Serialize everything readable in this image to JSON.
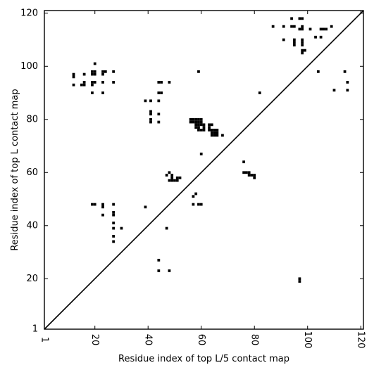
{
  "chart_data": {
    "type": "scatter",
    "title": "",
    "xlabel": "Residue index of top L/5 contact map",
    "ylabel": "Residue index of top L contact map",
    "xlim": [
      1,
      121
    ],
    "ylim": [
      1,
      121
    ],
    "xticks": [
      {
        "value": 1,
        "label": "1"
      },
      {
        "value": 20,
        "label": "20"
      },
      {
        "value": 40,
        "label": "40"
      },
      {
        "value": 60,
        "label": "60"
      },
      {
        "value": 80,
        "label": "80"
      },
      {
        "value": 100,
        "label": "100"
      },
      {
        "value": 120,
        "label": "120"
      }
    ],
    "yticks": [
      {
        "value": 1,
        "label": "1"
      },
      {
        "value": 20,
        "label": "20"
      },
      {
        "value": 40,
        "label": "40"
      },
      {
        "value": 60,
        "label": "60"
      },
      {
        "value": 80,
        "label": "80"
      },
      {
        "value": 100,
        "label": "100"
      },
      {
        "value": 120,
        "label": "120"
      }
    ],
    "grid": false,
    "diagonal": [
      [
        1,
        1
      ],
      [
        121,
        121
      ]
    ],
    "point_color": "#000000",
    "points": [
      [
        94,
        118
      ],
      [
        97,
        118
      ],
      [
        98,
        118
      ],
      [
        87,
        115
      ],
      [
        91,
        115
      ],
      [
        94,
        115
      ],
      [
        95,
        115
      ],
      [
        98,
        115
      ],
      [
        109,
        115
      ],
      [
        97,
        114
      ],
      [
        98,
        114
      ],
      [
        101,
        114
      ],
      [
        105,
        114
      ],
      [
        106,
        114
      ],
      [
        107,
        114
      ],
      [
        103,
        111
      ],
      [
        105,
        111
      ],
      [
        91,
        110
      ],
      [
        95,
        110
      ],
      [
        98,
        110
      ],
      [
        95,
        109
      ],
      [
        98,
        109
      ],
      [
        95,
        108
      ],
      [
        98,
        108
      ],
      [
        98,
        106
      ],
      [
        99,
        106
      ],
      [
        98,
        105
      ],
      [
        20,
        101
      ],
      [
        19,
        98
      ],
      [
        20,
        98
      ],
      [
        23,
        98
      ],
      [
        24,
        98
      ],
      [
        27,
        98
      ],
      [
        59,
        98
      ],
      [
        104,
        98
      ],
      [
        114,
        98
      ],
      [
        12,
        97
      ],
      [
        16,
        97
      ],
      [
        19,
        97
      ],
      [
        20,
        97
      ],
      [
        23,
        97
      ],
      [
        12,
        96
      ],
      [
        16,
        94
      ],
      [
        19,
        94
      ],
      [
        20,
        94
      ],
      [
        23,
        94
      ],
      [
        27,
        94
      ],
      [
        44,
        94
      ],
      [
        45,
        94
      ],
      [
        48,
        94
      ],
      [
        115,
        94
      ],
      [
        12,
        93
      ],
      [
        15,
        93
      ],
      [
        16,
        93
      ],
      [
        19,
        93
      ],
      [
        110,
        91
      ],
      [
        115,
        91
      ],
      [
        19,
        90
      ],
      [
        23,
        90
      ],
      [
        44,
        90
      ],
      [
        45,
        90
      ],
      [
        82,
        90
      ],
      [
        39,
        87
      ],
      [
        41,
        87
      ],
      [
        44,
        87
      ],
      [
        41,
        83
      ],
      [
        44,
        82
      ],
      [
        41,
        82
      ],
      [
        41,
        80
      ],
      [
        56,
        80
      ],
      [
        57,
        80
      ],
      [
        58,
        80
      ],
      [
        59,
        80
      ],
      [
        60,
        80
      ],
      [
        41,
        79
      ],
      [
        44,
        79
      ],
      [
        56,
        79
      ],
      [
        57,
        79
      ],
      [
        58,
        79
      ],
      [
        59,
        79
      ],
      [
        60,
        79
      ],
      [
        58,
        78
      ],
      [
        59,
        78
      ],
      [
        60,
        78
      ],
      [
        61,
        78
      ],
      [
        63,
        78
      ],
      [
        64,
        78
      ],
      [
        58,
        77
      ],
      [
        59,
        77
      ],
      [
        61,
        77
      ],
      [
        63,
        77
      ],
      [
        59,
        76
      ],
      [
        60,
        76
      ],
      [
        61,
        76
      ],
      [
        63,
        76
      ],
      [
        64,
        76
      ],
      [
        65,
        76
      ],
      [
        66,
        76
      ],
      [
        64,
        75
      ],
      [
        65,
        75
      ],
      [
        66,
        75
      ],
      [
        64,
        74
      ],
      [
        65,
        74
      ],
      [
        66,
        74
      ],
      [
        68,
        74
      ],
      [
        60,
        67
      ],
      [
        76,
        64
      ],
      [
        76,
        60
      ],
      [
        77,
        60
      ],
      [
        78,
        60
      ],
      [
        48,
        60
      ],
      [
        47,
        59
      ],
      [
        49,
        59
      ],
      [
        78,
        59
      ],
      [
        79,
        59
      ],
      [
        80,
        59
      ],
      [
        49,
        58
      ],
      [
        51,
        58
      ],
      [
        52,
        58
      ],
      [
        80,
        58
      ],
      [
        48,
        57
      ],
      [
        49,
        57
      ],
      [
        50,
        57
      ],
      [
        51,
        57
      ],
      [
        58,
        52
      ],
      [
        57,
        51
      ],
      [
        19,
        48
      ],
      [
        20,
        48
      ],
      [
        23,
        48
      ],
      [
        27,
        48
      ],
      [
        57,
        48
      ],
      [
        59,
        48
      ],
      [
        60,
        48
      ],
      [
        23,
        47
      ],
      [
        39,
        47
      ],
      [
        27,
        45
      ],
      [
        27,
        44
      ],
      [
        23,
        44
      ],
      [
        27,
        41
      ],
      [
        27,
        39
      ],
      [
        30,
        39
      ],
      [
        47,
        39
      ],
      [
        27,
        36
      ],
      [
        27,
        34
      ],
      [
        44,
        27
      ],
      [
        44,
        23
      ],
      [
        48,
        23
      ],
      [
        97,
        20
      ],
      [
        97,
        19
      ]
    ]
  }
}
